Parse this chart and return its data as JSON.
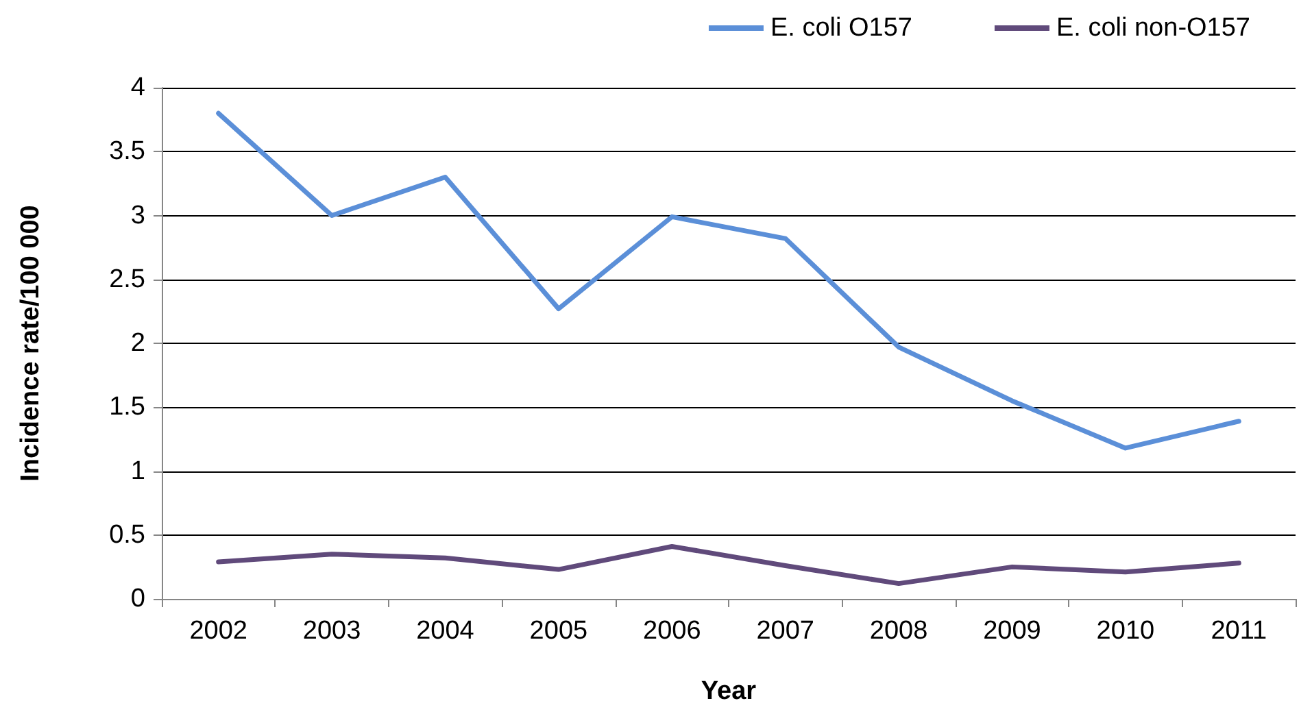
{
  "chart_data": {
    "type": "line",
    "xlabel": "Year",
    "ylabel": "Incidence rate/100 000",
    "categories": [
      "2002",
      "2003",
      "2004",
      "2005",
      "2006",
      "2007",
      "2008",
      "2009",
      "2010",
      "2011"
    ],
    "series": [
      {
        "name": "E. coli O157",
        "color": "#5b8fd8",
        "values": [
          3.8,
          3.0,
          3.3,
          2.27,
          2.99,
          2.82,
          1.97,
          1.55,
          1.18,
          1.39
        ]
      },
      {
        "name": "E. coli non-O157",
        "color": "#604a7b",
        "values": [
          0.29,
          0.35,
          0.32,
          0.23,
          0.41,
          0.26,
          0.12,
          0.25,
          0.21,
          0.28
        ]
      }
    ],
    "ylim": [
      0,
      4
    ],
    "yticks": [
      0,
      0.5,
      1,
      1.5,
      2,
      2.5,
      3,
      3.5,
      4
    ],
    "grid": "y",
    "legend": "top right",
    "marker": "none",
    "line_style": "solid"
  }
}
